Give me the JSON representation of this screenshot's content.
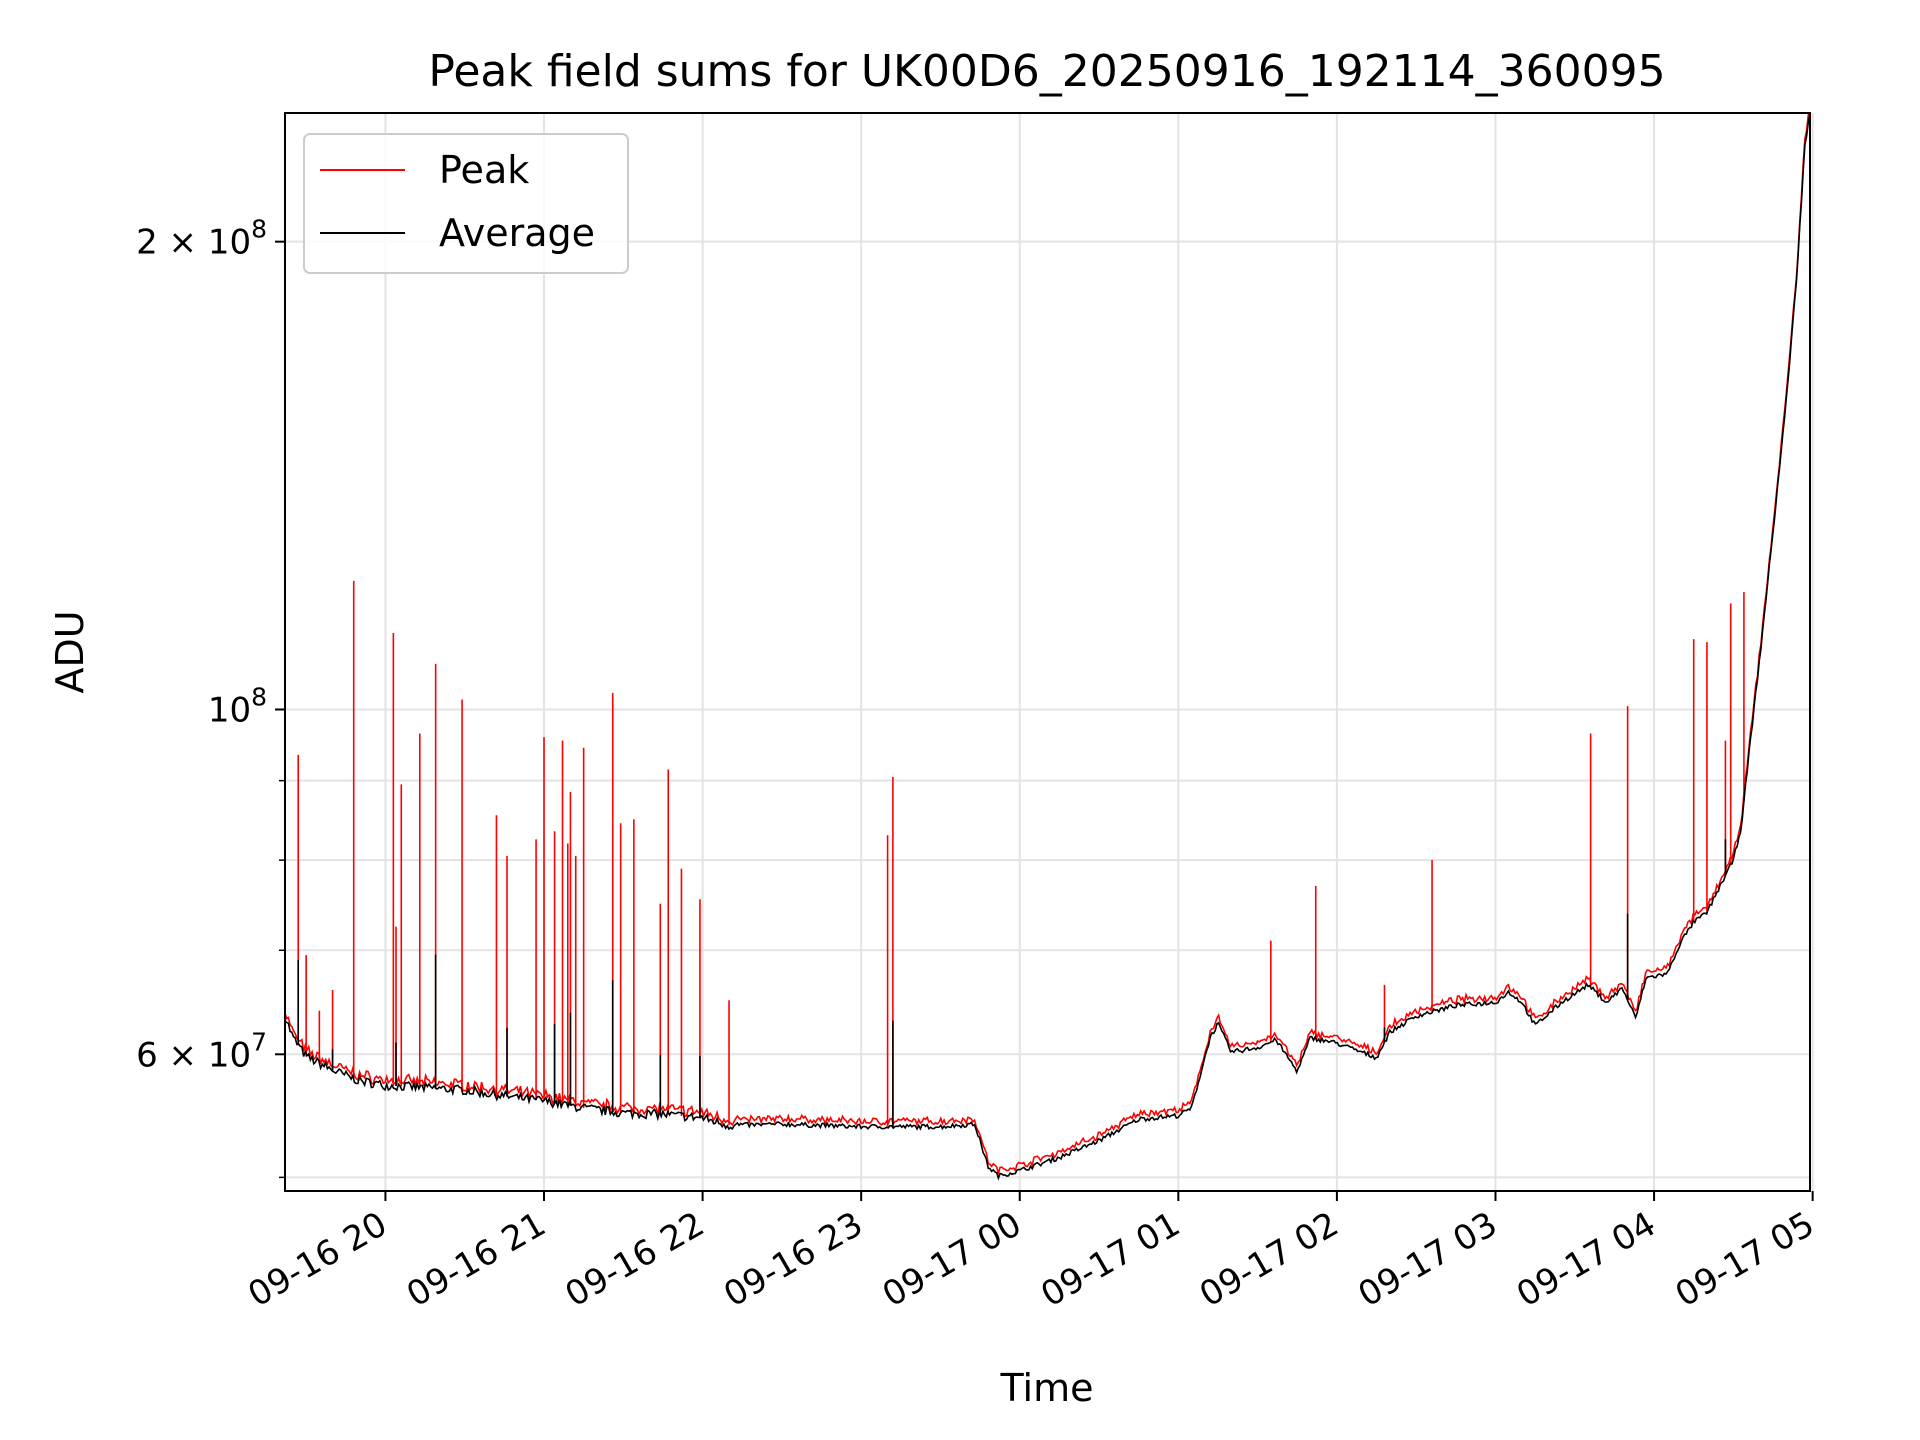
{
  "chart_data": {
    "type": "line",
    "title": "Peak field sums for UK00D6_20250916_192114_360095",
    "xlabel": "Time",
    "ylabel": "ADU",
    "yscale": "log",
    "xlim": [
      "2025-09-16 19:22",
      "2025-09-17 04:59"
    ],
    "ylim": [
      49000000,
      242000000
    ],
    "grid": true,
    "legend_position": "upper-left",
    "x_tick_labels": [
      "09-16 20",
      "09-16 21",
      "09-16 22",
      "09-16 23",
      "09-17 00",
      "09-17 01",
      "09-17 02",
      "09-17 03",
      "09-17 04",
      "09-17 05"
    ],
    "y_tick_labels": [
      {
        "value": 60000000,
        "base": "6 × 10",
        "exp": "7"
      },
      {
        "value": 100000000,
        "base": "10",
        "exp": "8"
      },
      {
        "value": 200000000,
        "base": "2 × 10",
        "exp": "8"
      }
    ],
    "colors": {
      "peak": "#ff0000",
      "average": "#000000",
      "grid": "#e3e3e3"
    },
    "series": [
      {
        "name": "Peak",
        "color": "#ff0000"
      },
      {
        "name": "Average",
        "color": "#000000"
      }
    ],
    "average_points": [
      [
        "2025-09-16 19:22",
        63500000
      ],
      [
        "2025-09-16 19:25",
        61500000
      ],
      [
        "2025-09-16 19:30",
        59800000
      ],
      [
        "2025-09-16 19:40",
        58600000
      ],
      [
        "2025-09-16 19:50",
        57700000
      ],
      [
        "2025-09-16 20:00",
        57300000
      ],
      [
        "2025-09-16 20:15",
        57100000
      ],
      [
        "2025-09-16 20:30",
        56900000
      ],
      [
        "2025-09-16 20:45",
        56400000
      ],
      [
        "2025-09-16 21:00",
        56000000
      ],
      [
        "2025-09-16 21:15",
        55400000
      ],
      [
        "2025-09-16 21:30",
        55000000
      ],
      [
        "2025-09-16 21:45",
        54900000
      ],
      [
        "2025-09-16 22:00",
        54600000
      ],
      [
        "2025-09-16 22:10",
        54000000
      ],
      [
        "2025-09-16 22:30",
        54100000
      ],
      [
        "2025-09-16 23:00",
        53900000
      ],
      [
        "2025-09-16 23:30",
        53900000
      ],
      [
        "2025-09-16 23:43",
        54100000
      ],
      [
        "2025-09-16 23:48",
        50800000
      ],
      [
        "2025-09-16 23:52",
        50100000
      ],
      [
        "2025-09-17 00:00",
        50500000
      ],
      [
        "2025-09-17 00:15",
        51500000
      ],
      [
        "2025-09-17 00:30",
        52800000
      ],
      [
        "2025-09-17 00:45",
        54500000
      ],
      [
        "2025-09-17 01:00",
        54800000
      ],
      [
        "2025-09-17 01:05",
        55400000
      ],
      [
        "2025-09-17 01:12",
        61500000
      ],
      [
        "2025-09-17 01:15",
        62800000
      ],
      [
        "2025-09-17 01:20",
        60200000
      ],
      [
        "2025-09-17 01:30",
        60600000
      ],
      [
        "2025-09-17 01:37",
        61300000
      ],
      [
        "2025-09-17 01:45",
        58500000
      ],
      [
        "2025-09-17 01:50",
        61500000
      ],
      [
        "2025-09-17 02:00",
        61000000
      ],
      [
        "2025-09-17 02:15",
        59700000
      ],
      [
        "2025-09-17 02:20",
        62000000
      ],
      [
        "2025-09-17 02:30",
        63500000
      ],
      [
        "2025-09-17 02:45",
        64500000
      ],
      [
        "2025-09-17 03:00",
        64800000
      ],
      [
        "2025-09-17 03:05",
        65800000
      ],
      [
        "2025-09-17 03:10",
        64800000
      ],
      [
        "2025-09-17 03:15",
        62600000
      ],
      [
        "2025-09-17 03:25",
        64800000
      ],
      [
        "2025-09-17 03:35",
        66500000
      ],
      [
        "2025-09-17 03:42",
        64800000
      ],
      [
        "2025-09-17 03:48",
        66200000
      ],
      [
        "2025-09-17 03:53",
        63300000
      ],
      [
        "2025-09-17 03:57",
        67200000
      ],
      [
        "2025-09-17 04:05",
        67600000
      ],
      [
        "2025-09-17 04:10",
        70800000
      ],
      [
        "2025-09-17 04:15",
        73000000
      ],
      [
        "2025-09-17 04:20",
        74000000
      ],
      [
        "2025-09-17 04:25",
        77000000
      ],
      [
        "2025-09-17 04:30",
        80000000
      ],
      [
        "2025-09-17 04:33",
        84000000
      ],
      [
        "2025-09-17 04:36",
        94000000
      ],
      [
        "2025-09-17 04:40",
        108000000
      ],
      [
        "2025-09-17 04:45",
        130000000
      ],
      [
        "2025-09-17 04:50",
        158000000
      ],
      [
        "2025-09-17 04:54",
        190000000
      ],
      [
        "2025-09-17 04:57",
        230000000
      ],
      [
        "2025-09-17 04:59",
        242000000
      ]
    ],
    "peak_spikes": [
      [
        "2025-09-16 19:27",
        93500000
      ],
      [
        "2025-09-16 19:30",
        69500000
      ],
      [
        "2025-09-16 19:35",
        64000000
      ],
      [
        "2025-09-16 19:40",
        66000000
      ],
      [
        "2025-09-16 19:48",
        121000000
      ],
      [
        "2025-09-16 20:03",
        112000000
      ],
      [
        "2025-09-16 20:04",
        72500000
      ],
      [
        "2025-09-16 20:06",
        89500000
      ],
      [
        "2025-09-16 20:13",
        96500000
      ],
      [
        "2025-09-16 20:19",
        107000000
      ],
      [
        "2025-09-16 20:29",
        101500000
      ],
      [
        "2025-09-16 20:42",
        85500000
      ],
      [
        "2025-09-16 20:46",
        80500000
      ],
      [
        "2025-09-16 20:57",
        82500000
      ],
      [
        "2025-09-16 21:00",
        96000000
      ],
      [
        "2025-09-16 21:04",
        83500000
      ],
      [
        "2025-09-16 21:07",
        95500000
      ],
      [
        "2025-09-16 21:09",
        82000000
      ],
      [
        "2025-09-16 21:10",
        88500000
      ],
      [
        "2025-09-16 21:12",
        80500000
      ],
      [
        "2025-09-16 21:15",
        94500000
      ],
      [
        "2025-09-16 21:26",
        102500000
      ],
      [
        "2025-09-16 21:29",
        84500000
      ],
      [
        "2025-09-16 21:34",
        85000000
      ],
      [
        "2025-09-16 21:44",
        75000000
      ],
      [
        "2025-09-16 21:47",
        91500000
      ],
      [
        "2025-09-16 21:52",
        79000000
      ],
      [
        "2025-09-16 21:59",
        75500000
      ],
      [
        "2025-09-16 22:10",
        65000000
      ],
      [
        "2025-09-16 23:10",
        83000000
      ],
      [
        "2025-09-16 23:12",
        90500000
      ],
      [
        "2025-09-17 01:35",
        71000000
      ],
      [
        "2025-09-17 01:52",
        77000000
      ],
      [
        "2025-09-17 02:18",
        66500000
      ],
      [
        "2025-09-17 02:36",
        80000000
      ],
      [
        "2025-09-17 03:36",
        96500000
      ],
      [
        "2025-09-17 03:50",
        100500000
      ],
      [
        "2025-09-17 04:15",
        111000000
      ],
      [
        "2025-09-17 04:20",
        110500000
      ],
      [
        "2025-09-17 04:27",
        95500000
      ],
      [
        "2025-09-17 04:29",
        117000000
      ],
      [
        "2025-09-17 04:34",
        119000000
      ]
    ]
  }
}
